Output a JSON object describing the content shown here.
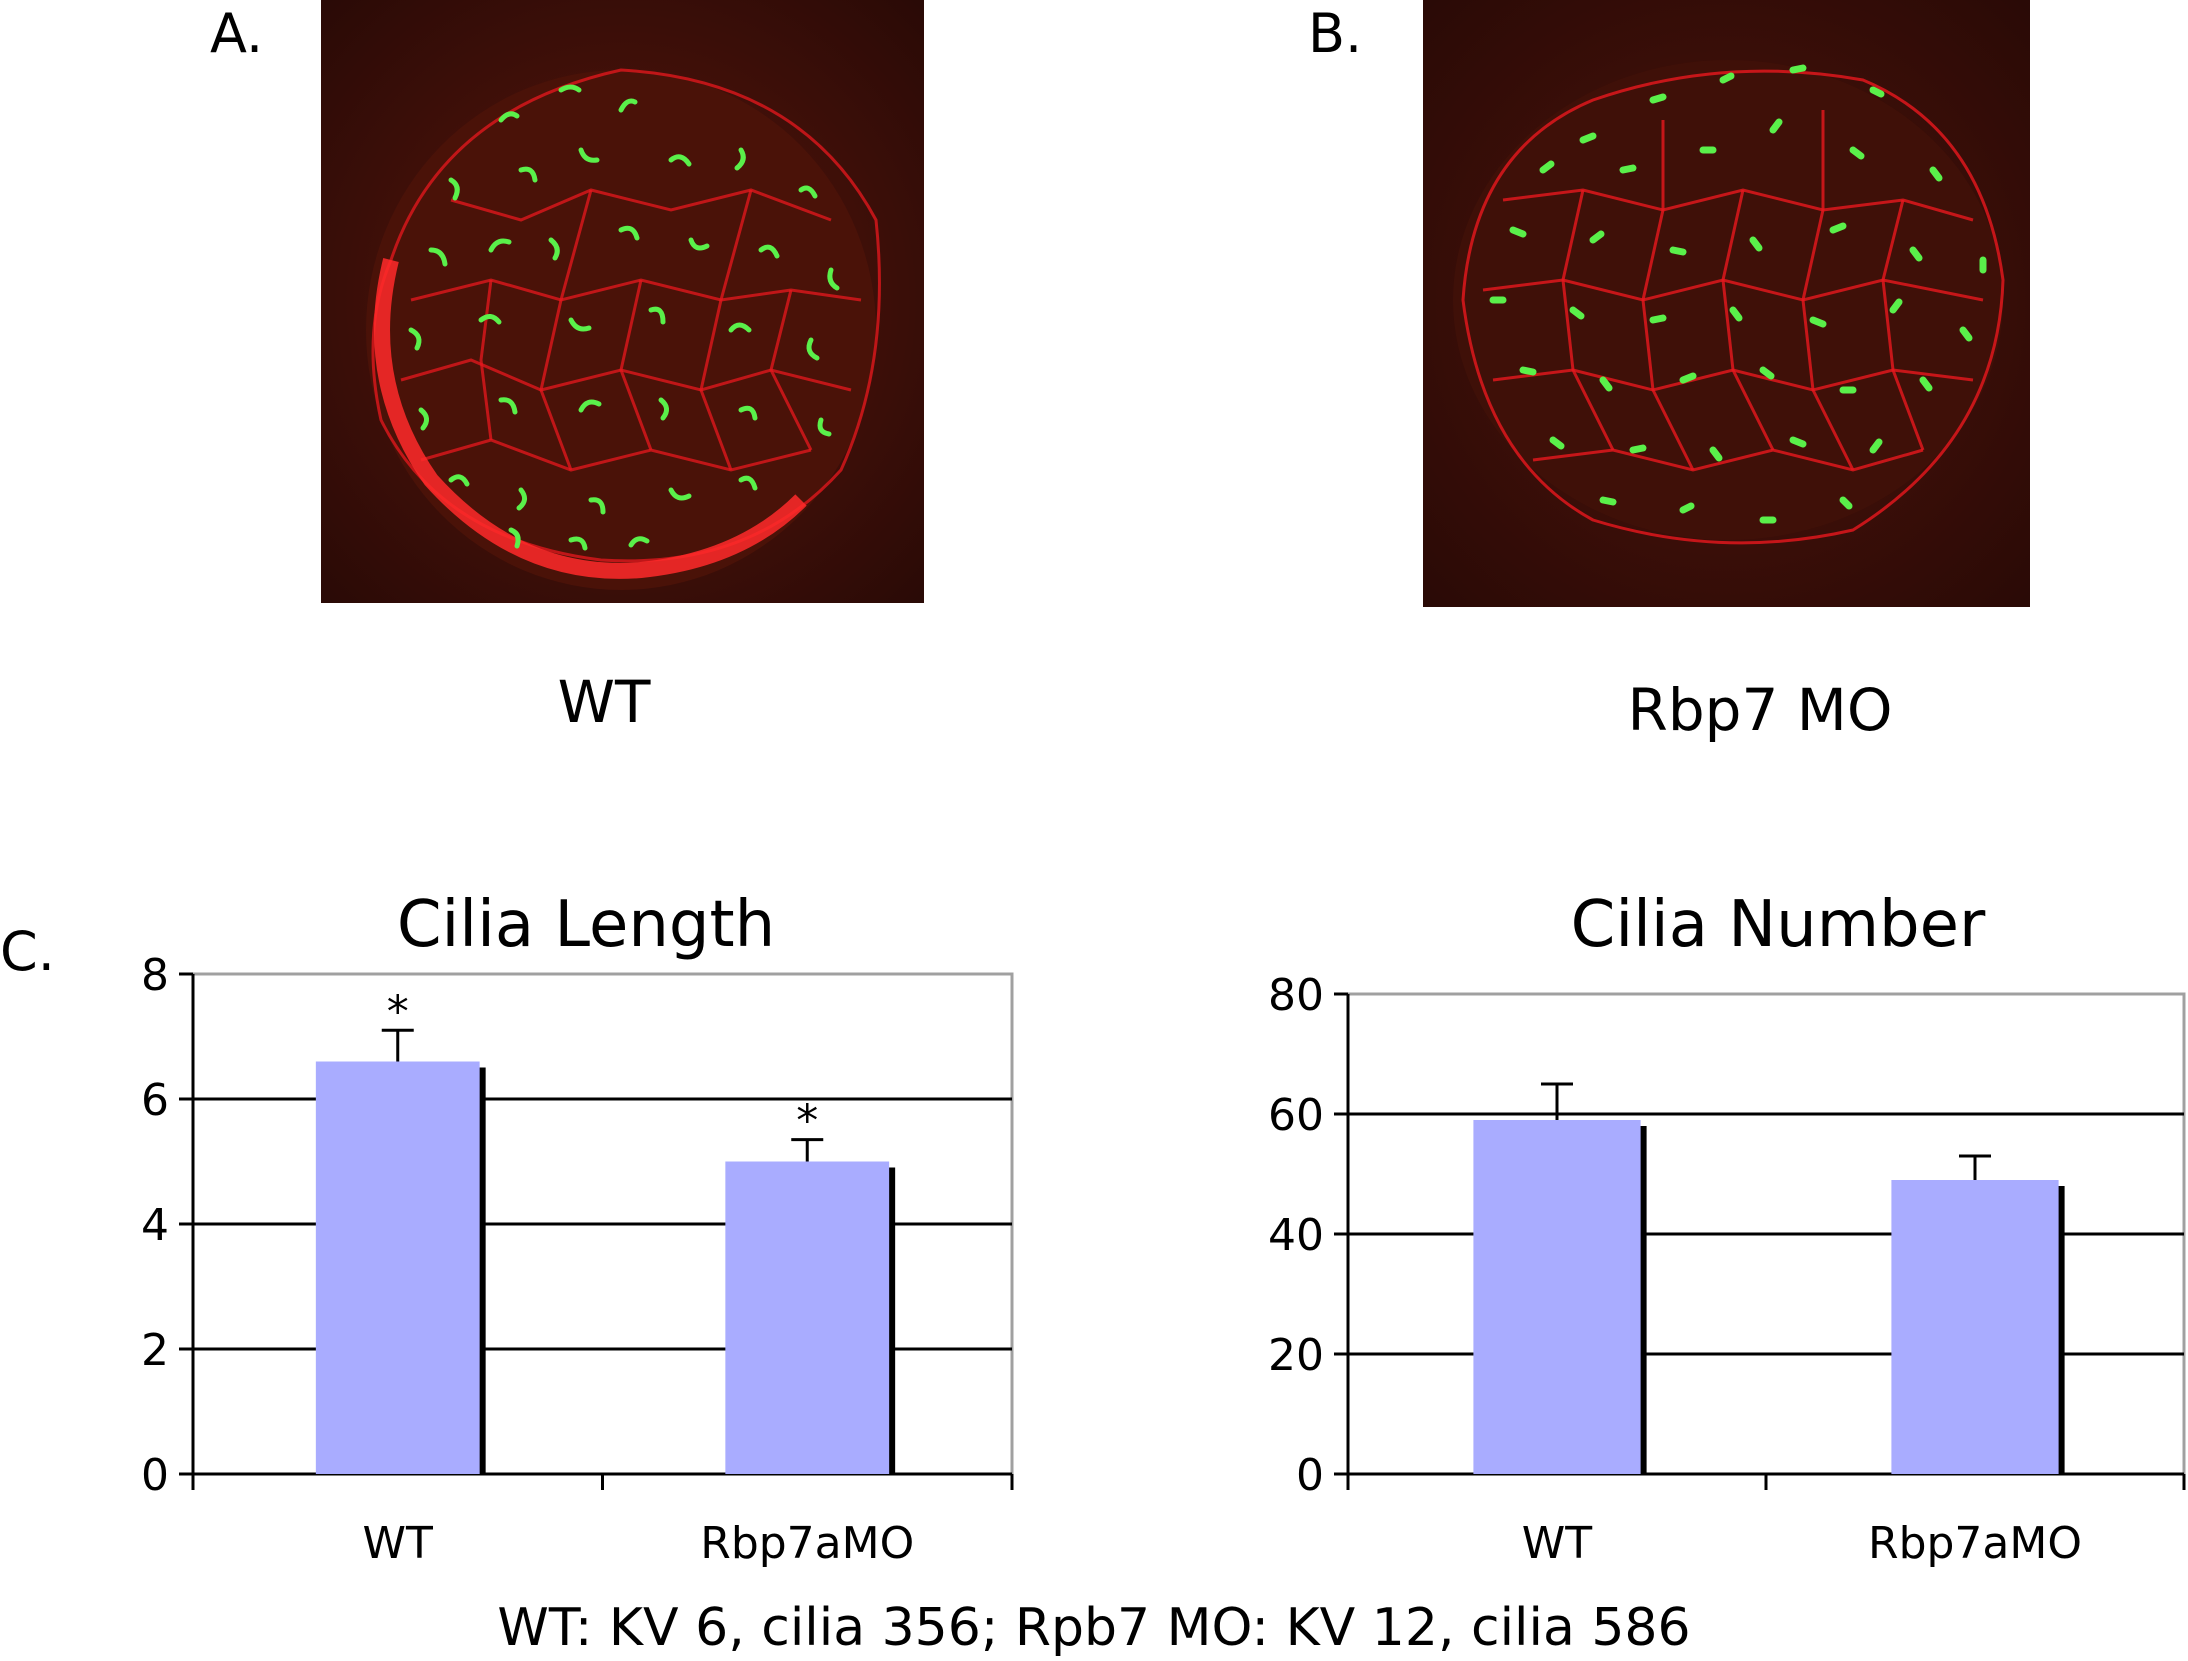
{
  "panels": {
    "a": {
      "letter": "A.",
      "condition": "WT"
    },
    "b": {
      "letter": "B.",
      "condition": "Rbp7 MO"
    },
    "c": {
      "letter": "C."
    }
  },
  "colors": {
    "bar_fill": "#a9acff",
    "bar_shadow": "#000000",
    "membrane_red": "#e8181e",
    "cilia_green": "#5af04a",
    "background_dark": "#3a0d08"
  },
  "footnote": "WT: KV 6, cilia 356; Rpb7 MO: KV 12, cilia 586",
  "chart_data": [
    {
      "type": "bar",
      "title": "Cilia Length",
      "categories": [
        "WT",
        "Rbp7aMO"
      ],
      "values": [
        6.6,
        5.0
      ],
      "errors": [
        0.5,
        0.35
      ],
      "annotations": [
        "*",
        "*"
      ],
      "ylim": [
        0,
        8
      ],
      "yticks": [
        0,
        2,
        4,
        6,
        8
      ],
      "grid": true,
      "xlabel": "",
      "ylabel": ""
    },
    {
      "type": "bar",
      "title": "Cilia Number",
      "categories": [
        "WT",
        "Rbp7aMO"
      ],
      "values": [
        59,
        49
      ],
      "errors": [
        6,
        4
      ],
      "annotations": [
        "",
        ""
      ],
      "ylim": [
        0,
        80
      ],
      "yticks": [
        0,
        20,
        40,
        60,
        80
      ],
      "grid": true,
      "xlabel": "",
      "ylabel": ""
    }
  ]
}
